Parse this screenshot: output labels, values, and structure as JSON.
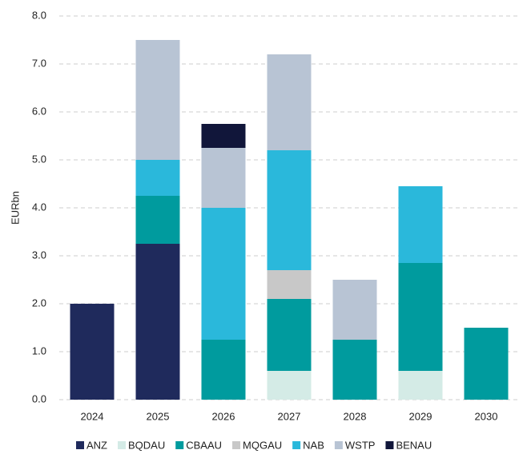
{
  "chart_data": {
    "type": "stacked_bar",
    "ylabel": "EURbn",
    "categories": [
      "2024",
      "2025",
      "2026",
      "2027",
      "2028",
      "2029",
      "2030"
    ],
    "series": [
      {
        "name": "ANZ",
        "color": "#1f2a5c",
        "values": [
          2.0,
          3.25,
          0,
          0,
          0,
          0,
          0
        ]
      },
      {
        "name": "BQDAU",
        "color": "#d4ebe6",
        "values": [
          0,
          0,
          0,
          0.6,
          0,
          0.6,
          0
        ]
      },
      {
        "name": "CBAAU",
        "color": "#009b9e",
        "values": [
          0,
          1.0,
          1.25,
          1.5,
          1.25,
          2.25,
          1.5
        ]
      },
      {
        "name": "MQGAU",
        "color": "#c8c8c8",
        "values": [
          0,
          0,
          0,
          0.6,
          0,
          0,
          0
        ]
      },
      {
        "name": "NAB",
        "color": "#2ab8db",
        "values": [
          0,
          0.75,
          2.75,
          2.5,
          0,
          1.6,
          0
        ]
      },
      {
        "name": "WSTP",
        "color": "#b8c4d4",
        "values": [
          0,
          2.5,
          1.25,
          2.0,
          1.25,
          0,
          0
        ]
      },
      {
        "name": "BENAU",
        "color": "#11163a",
        "values": [
          0,
          0,
          0.5,
          0,
          0,
          0,
          0
        ]
      }
    ],
    "ylim": [
      0,
      8
    ],
    "yticks": [
      {
        "value": 0,
        "label": "0.0"
      },
      {
        "value": 1,
        "label": "1.0"
      },
      {
        "value": 2,
        "label": "2.0"
      },
      {
        "value": 3,
        "label": "3.0"
      },
      {
        "value": 4,
        "label": "4.0"
      },
      {
        "value": 5,
        "label": "5.0"
      },
      {
        "value": 6,
        "label": "6.0"
      },
      {
        "value": 7,
        "label": "7.0"
      },
      {
        "value": 8,
        "label": "8.0"
      }
    ],
    "grid": true,
    "legend": "bottom"
  }
}
